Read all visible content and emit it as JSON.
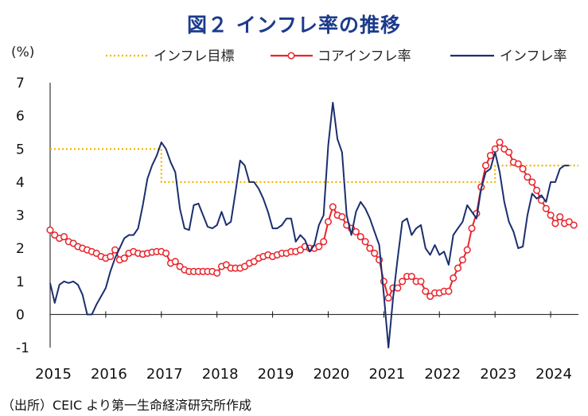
{
  "title": "図２ インフレ率の推移",
  "source": "（出所）CEIC より第一生命経済研究所作成",
  "chart_data": {
    "type": "line",
    "ylabel": "(%)",
    "ylim": [
      -1,
      7
    ],
    "yticks": [
      -1,
      0,
      1,
      2,
      3,
      4,
      5,
      6,
      7
    ],
    "xlim": [
      2015.0,
      2024.5
    ],
    "xticks": [
      2015,
      2016,
      2017,
      2018,
      2019,
      2020,
      2021,
      2022,
      2023,
      2024
    ],
    "legend_position": "top",
    "series": [
      {
        "name": "インフレ目標",
        "style": "dotted",
        "color": "#f0b400",
        "points": [
          [
            2015.0,
            5
          ],
          [
            2017.0,
            5
          ],
          [
            2017.0,
            4
          ],
          [
            2023.0,
            4
          ],
          [
            2023.0,
            4.5
          ],
          [
            2024.5,
            4.5
          ]
        ]
      },
      {
        "name": "コアインフレ率",
        "style": "line-markers",
        "color": "#e8242c",
        "points": [
          [
            2015.0,
            2.55
          ],
          [
            2015.083,
            2.4
          ],
          [
            2015.167,
            2.3
          ],
          [
            2015.25,
            2.35
          ],
          [
            2015.333,
            2.2
          ],
          [
            2015.417,
            2.15
          ],
          [
            2015.5,
            2.05
          ],
          [
            2015.583,
            2.0
          ],
          [
            2015.667,
            1.95
          ],
          [
            2015.75,
            1.9
          ],
          [
            2015.833,
            1.85
          ],
          [
            2015.917,
            1.75
          ],
          [
            2016.0,
            1.7
          ],
          [
            2016.083,
            1.75
          ],
          [
            2016.167,
            1.95
          ],
          [
            2016.25,
            1.65
          ],
          [
            2016.333,
            1.7
          ],
          [
            2016.417,
            1.85
          ],
          [
            2016.5,
            1.9
          ],
          [
            2016.583,
            1.85
          ],
          [
            2016.667,
            1.82
          ],
          [
            2016.75,
            1.85
          ],
          [
            2016.833,
            1.88
          ],
          [
            2016.917,
            1.9
          ],
          [
            2017.0,
            1.9
          ],
          [
            2017.083,
            1.85
          ],
          [
            2017.167,
            1.55
          ],
          [
            2017.25,
            1.6
          ],
          [
            2017.333,
            1.45
          ],
          [
            2017.417,
            1.35
          ],
          [
            2017.5,
            1.3
          ],
          [
            2017.583,
            1.3
          ],
          [
            2017.667,
            1.3
          ],
          [
            2017.75,
            1.3
          ],
          [
            2017.833,
            1.3
          ],
          [
            2017.917,
            1.3
          ],
          [
            2018.0,
            1.25
          ],
          [
            2018.083,
            1.45
          ],
          [
            2018.167,
            1.5
          ],
          [
            2018.25,
            1.4
          ],
          [
            2018.333,
            1.4
          ],
          [
            2018.417,
            1.4
          ],
          [
            2018.5,
            1.45
          ],
          [
            2018.583,
            1.55
          ],
          [
            2018.667,
            1.6
          ],
          [
            2018.75,
            1.7
          ],
          [
            2018.833,
            1.75
          ],
          [
            2018.917,
            1.8
          ],
          [
            2019.0,
            1.75
          ],
          [
            2019.083,
            1.8
          ],
          [
            2019.167,
            1.85
          ],
          [
            2019.25,
            1.85
          ],
          [
            2019.333,
            1.9
          ],
          [
            2019.417,
            1.9
          ],
          [
            2019.5,
            1.95
          ],
          [
            2019.583,
            2.05
          ],
          [
            2019.667,
            2.0
          ],
          [
            2019.75,
            2.0
          ],
          [
            2019.833,
            2.05
          ],
          [
            2019.917,
            2.2
          ],
          [
            2020.0,
            2.8
          ],
          [
            2020.083,
            3.25
          ],
          [
            2020.167,
            3.0
          ],
          [
            2020.25,
            2.95
          ],
          [
            2020.333,
            2.7
          ],
          [
            2020.417,
            2.6
          ],
          [
            2020.5,
            2.5
          ],
          [
            2020.583,
            2.35
          ],
          [
            2020.667,
            2.2
          ],
          [
            2020.75,
            2.0
          ],
          [
            2020.833,
            1.85
          ],
          [
            2020.917,
            1.65
          ],
          [
            2021.0,
            1.0
          ],
          [
            2021.083,
            0.5
          ],
          [
            2021.167,
            0.8
          ],
          [
            2021.25,
            0.8
          ],
          [
            2021.333,
            1.0
          ],
          [
            2021.417,
            1.15
          ],
          [
            2021.5,
            1.15
          ],
          [
            2021.583,
            1.0
          ],
          [
            2021.667,
            1.0
          ],
          [
            2021.75,
            0.7
          ],
          [
            2021.833,
            0.55
          ],
          [
            2021.917,
            0.65
          ],
          [
            2022.0,
            0.65
          ],
          [
            2022.083,
            0.7
          ],
          [
            2022.167,
            0.7
          ],
          [
            2022.25,
            1.1
          ],
          [
            2022.333,
            1.4
          ],
          [
            2022.417,
            1.65
          ],
          [
            2022.5,
            1.95
          ],
          [
            2022.583,
            2.6
          ],
          [
            2022.667,
            3.05
          ],
          [
            2022.75,
            3.85
          ],
          [
            2022.833,
            4.5
          ],
          [
            2022.917,
            4.8
          ],
          [
            2023.0,
            5.0
          ],
          [
            2023.083,
            5.2
          ],
          [
            2023.167,
            5.0
          ],
          [
            2023.25,
            4.9
          ],
          [
            2023.333,
            4.6
          ],
          [
            2023.417,
            4.55
          ],
          [
            2023.5,
            4.4
          ],
          [
            2023.583,
            4.15
          ],
          [
            2023.667,
            4.0
          ],
          [
            2023.75,
            3.75
          ],
          [
            2023.833,
            3.45
          ],
          [
            2023.917,
            3.2
          ],
          [
            2024.0,
            3.0
          ],
          [
            2024.083,
            2.75
          ],
          [
            2024.167,
            2.95
          ],
          [
            2024.25,
            2.75
          ],
          [
            2024.333,
            2.8
          ],
          [
            2024.417,
            2.7
          ]
        ]
      },
      {
        "name": "インフレ率",
        "style": "line",
        "color": "#1b2f6e",
        "points": [
          [
            2015.0,
            0.95
          ],
          [
            2015.083,
            0.35
          ],
          [
            2015.167,
            0.9
          ],
          [
            2015.25,
            1.0
          ],
          [
            2015.333,
            0.95
          ],
          [
            2015.417,
            1.0
          ],
          [
            2015.5,
            0.9
          ],
          [
            2015.583,
            0.6
          ],
          [
            2015.667,
            0.0
          ],
          [
            2015.75,
            0.0
          ],
          [
            2015.833,
            0.3
          ],
          [
            2015.917,
            0.55
          ],
          [
            2016.0,
            0.8
          ],
          [
            2016.083,
            1.3
          ],
          [
            2016.167,
            1.7
          ],
          [
            2016.25,
            2.0
          ],
          [
            2016.333,
            2.3
          ],
          [
            2016.417,
            2.4
          ],
          [
            2016.5,
            2.4
          ],
          [
            2016.583,
            2.6
          ],
          [
            2016.667,
            3.3
          ],
          [
            2016.75,
            4.1
          ],
          [
            2016.833,
            4.5
          ],
          [
            2016.917,
            4.8
          ],
          [
            2017.0,
            5.2
          ],
          [
            2017.083,
            5.0
          ],
          [
            2017.167,
            4.6
          ],
          [
            2017.25,
            4.3
          ],
          [
            2017.333,
            3.2
          ],
          [
            2017.417,
            2.6
          ],
          [
            2017.5,
            2.55
          ],
          [
            2017.583,
            3.3
          ],
          [
            2017.667,
            3.35
          ],
          [
            2017.75,
            3.0
          ],
          [
            2017.833,
            2.65
          ],
          [
            2017.917,
            2.6
          ],
          [
            2018.0,
            2.7
          ],
          [
            2018.083,
            3.1
          ],
          [
            2018.167,
            2.7
          ],
          [
            2018.25,
            2.8
          ],
          [
            2018.333,
            3.7
          ],
          [
            2018.417,
            4.65
          ],
          [
            2018.5,
            4.5
          ],
          [
            2018.583,
            4.0
          ],
          [
            2018.667,
            4.0
          ],
          [
            2018.75,
            3.8
          ],
          [
            2018.833,
            3.5
          ],
          [
            2018.917,
            3.1
          ],
          [
            2019.0,
            2.6
          ],
          [
            2019.083,
            2.6
          ],
          [
            2019.167,
            2.7
          ],
          [
            2019.25,
            2.9
          ],
          [
            2019.333,
            2.9
          ],
          [
            2019.417,
            2.2
          ],
          [
            2019.5,
            2.4
          ],
          [
            2019.583,
            2.25
          ],
          [
            2019.667,
            1.9
          ],
          [
            2019.75,
            2.1
          ],
          [
            2019.833,
            2.7
          ],
          [
            2019.917,
            3.0
          ],
          [
            2020.0,
            5.1
          ],
          [
            2020.083,
            6.4
          ],
          [
            2020.167,
            5.3
          ],
          [
            2020.25,
            4.9
          ],
          [
            2020.333,
            3.0
          ],
          [
            2020.417,
            2.4
          ],
          [
            2020.5,
            3.1
          ],
          [
            2020.583,
            3.4
          ],
          [
            2020.667,
            3.2
          ],
          [
            2020.75,
            2.9
          ],
          [
            2020.833,
            2.5
          ],
          [
            2020.917,
            2.1
          ],
          [
            2021.0,
            0.6
          ],
          [
            2021.083,
            -1.0
          ],
          [
            2021.167,
            0.5
          ],
          [
            2021.25,
            1.7
          ],
          [
            2021.333,
            2.8
          ],
          [
            2021.417,
            2.9
          ],
          [
            2021.5,
            2.4
          ],
          [
            2021.583,
            2.6
          ],
          [
            2021.667,
            2.7
          ],
          [
            2021.75,
            2.0
          ],
          [
            2021.833,
            1.8
          ],
          [
            2021.917,
            2.1
          ],
          [
            2022.0,
            1.8
          ],
          [
            2022.083,
            1.9
          ],
          [
            2022.167,
            1.5
          ],
          [
            2022.25,
            2.4
          ],
          [
            2022.333,
            2.6
          ],
          [
            2022.417,
            2.8
          ],
          [
            2022.5,
            3.3
          ],
          [
            2022.583,
            3.1
          ],
          [
            2022.667,
            2.9
          ],
          [
            2022.75,
            3.8
          ],
          [
            2022.833,
            4.3
          ],
          [
            2022.917,
            4.4
          ],
          [
            2023.0,
            4.9
          ],
          [
            2023.083,
            4.3
          ],
          [
            2023.167,
            3.4
          ],
          [
            2023.25,
            2.8
          ],
          [
            2023.333,
            2.5
          ],
          [
            2023.417,
            2.0
          ],
          [
            2023.5,
            2.05
          ],
          [
            2023.583,
            3.0
          ],
          [
            2023.667,
            3.65
          ],
          [
            2023.75,
            3.5
          ],
          [
            2023.833,
            3.6
          ],
          [
            2023.917,
            3.4
          ],
          [
            2024.0,
            4.0
          ],
          [
            2024.083,
            4.0
          ],
          [
            2024.167,
            4.4
          ],
          [
            2024.25,
            4.5
          ],
          [
            2024.333,
            4.5
          ]
        ]
      }
    ]
  }
}
